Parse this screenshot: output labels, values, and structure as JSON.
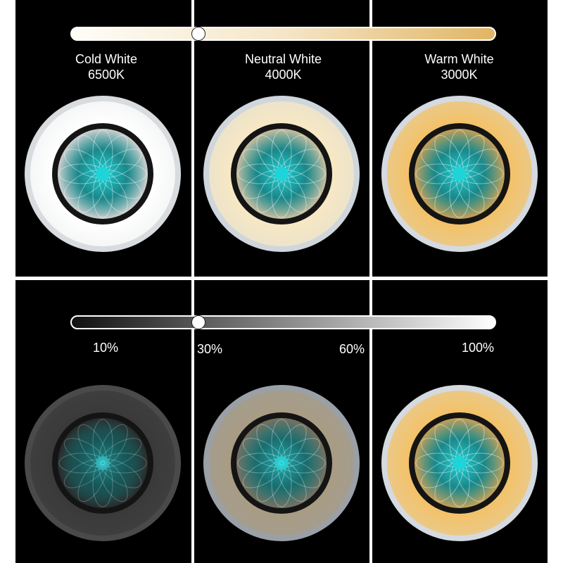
{
  "color_temperature": {
    "slider_colors": [
      "#fffdf8",
      "#f5e6c8",
      "#e0b564"
    ],
    "level": 0.3,
    "options": [
      {
        "name": "Cold White",
        "kelvin": "6500K",
        "tint": "#ffffff",
        "ring": "#d8dcde"
      },
      {
        "name": "Neutral White",
        "kelvin": "4000K",
        "tint": "#f7e8c4",
        "ring": "#cfd6dc"
      },
      {
        "name": "Warm White",
        "kelvin": "3000K",
        "tint": "#f3c268",
        "ring": "#d4dae0"
      }
    ]
  },
  "brightness": {
    "slider_colors": [
      "#111111",
      "#ffffff"
    ],
    "level": 0.3,
    "labels": [
      "10%",
      "30%",
      "60%",
      "100%"
    ],
    "lamps": [
      {
        "tint": "#3a3a3a",
        "ring": "#4a4a4a",
        "glow": 0.25
      },
      {
        "tint": "#a89c84",
        "ring": "#9aa0a6",
        "glow": 0.6
      },
      {
        "tint": "#f3c268",
        "ring": "#d4dae0",
        "glow": 1.0
      }
    ]
  },
  "center_color": "#1fd4d8"
}
